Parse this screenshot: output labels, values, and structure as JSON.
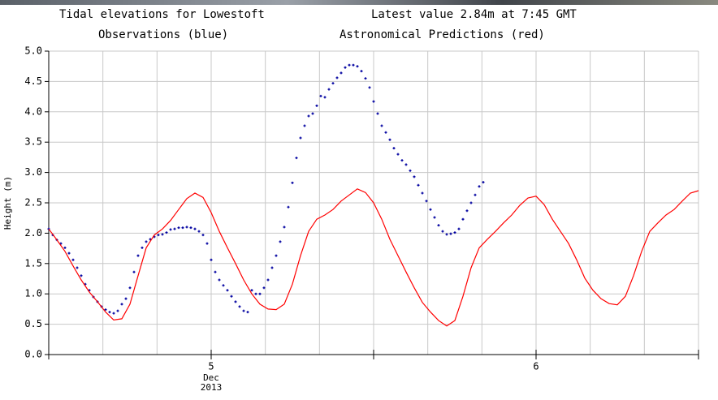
{
  "chart_data": {
    "type": "line",
    "title": "Tidal elevations for Lowestoft",
    "subtitle": "Latest value 2.84m at 7:45 GMT",
    "y_label": "Height (m)",
    "x_sublabels": [
      "Dec",
      "2013"
    ],
    "xlim": [
      4.5,
      6.5
    ],
    "xticks": [
      5,
      6
    ],
    "xtick_marks": [
      4.5,
      5,
      5.5,
      6,
      6.5
    ],
    "xgrid": [
      4.6667,
      4.8333,
      5,
      5.1667,
      5.3333,
      5.5,
      5.6667,
      5.8333,
      6,
      6.1667,
      6.3333,
      6.5
    ],
    "ylim": [
      0,
      5
    ],
    "yticks": [
      {
        "value": 0,
        "label": "0.0"
      },
      0.5,
      {
        "value": 1,
        "label": "1.0"
      },
      1.5,
      {
        "value": 2,
        "label": "2.0"
      },
      2.5,
      {
        "value": 3,
        "label": "3.0"
      },
      3.5,
      {
        "value": 4,
        "label": "4.0"
      },
      4.5,
      {
        "value": 5,
        "label": "5.0"
      }
    ],
    "grid": true,
    "series": [
      {
        "name": "Observations (blue)",
        "color": "#0000a0",
        "marker": "plus",
        "x": [
          4.5,
          4.5125,
          4.525,
          4.5375,
          4.55,
          4.5625,
          4.575,
          4.5875,
          4.6,
          4.6125,
          4.625,
          4.6375,
          4.65,
          4.6625,
          4.675,
          4.6875,
          4.7,
          4.7125,
          4.725,
          4.7375,
          4.75,
          4.7625,
          4.775,
          4.7875,
          4.8,
          4.8125,
          4.825,
          4.8375,
          4.85,
          4.8625,
          4.875,
          4.8875,
          4.9,
          4.9125,
          4.925,
          4.9375,
          4.95,
          4.9625,
          4.975,
          4.9875,
          5,
          5.0125,
          5.025,
          5.0375,
          5.05,
          5.0625,
          5.075,
          5.0875,
          5.1,
          5.1125,
          5.125,
          5.1375,
          5.15,
          5.1625,
          5.175,
          5.1875,
          5.2,
          5.2125,
          5.225,
          5.2375,
          5.25,
          5.2625,
          5.275,
          5.2875,
          5.3,
          5.3125,
          5.325,
          5.3375,
          5.35,
          5.3625,
          5.375,
          5.3875,
          5.4,
          5.4125,
          5.425,
          5.4375,
          5.45,
          5.4625,
          5.475,
          5.4875,
          5.5,
          5.5125,
          5.525,
          5.5375,
          5.55,
          5.5625,
          5.575,
          5.5875,
          5.6,
          5.6125,
          5.625,
          5.6375,
          5.65,
          5.6625,
          5.675,
          5.6875,
          5.7,
          5.7125,
          5.725,
          5.7375,
          5.75,
          5.7625,
          5.775,
          5.7875,
          5.8,
          5.8125,
          5.825,
          5.8375
        ],
        "values": [
          2.07,
          1.97,
          1.89,
          1.83,
          1.76,
          1.67,
          1.56,
          1.43,
          1.3,
          1.16,
          1.06,
          0.95,
          0.87,
          0.79,
          0.74,
          0.7,
          0.68,
          0.72,
          0.83,
          0.92,
          1.1,
          1.36,
          1.63,
          1.76,
          1.86,
          1.9,
          1.94,
          1.97,
          1.98,
          2.01,
          2.06,
          2.07,
          2.09,
          2.09,
          2.1,
          2.09,
          2.07,
          2.03,
          1.97,
          1.83,
          1.56,
          1.36,
          1.23,
          1.14,
          1.06,
          0.96,
          0.87,
          0.79,
          0.72,
          0.7,
          1.06,
          1.0,
          1.0,
          1.1,
          1.23,
          1.43,
          1.63,
          1.86,
          2.1,
          2.43,
          2.83,
          3.24,
          3.57,
          3.77,
          3.93,
          3.97,
          4.1,
          4.26,
          4.24,
          4.37,
          4.47,
          4.56,
          4.64,
          4.73,
          4.77,
          4.77,
          4.75,
          4.67,
          4.55,
          4.4,
          4.17,
          3.97,
          3.77,
          3.66,
          3.54,
          3.4,
          3.3,
          3.2,
          3.13,
          3.03,
          2.93,
          2.79,
          2.66,
          2.53,
          2.39,
          2.26,
          2.13,
          2.03,
          1.98,
          1.99,
          2.01,
          2.07,
          2.23,
          2.37,
          2.5,
          2.63,
          2.77,
          2.84
        ]
      },
      {
        "name": "Astronomical Predictions (red)",
        "color": "#ff0000",
        "marker": "line",
        "x": [
          4.5,
          4.525,
          4.55,
          4.575,
          4.6,
          4.625,
          4.65,
          4.675,
          4.7,
          4.725,
          4.75,
          4.775,
          4.8,
          4.825,
          4.85,
          4.875,
          4.9,
          4.925,
          4.95,
          4.975,
          5,
          5.025,
          5.05,
          5.075,
          5.1,
          5.125,
          5.15,
          5.175,
          5.2,
          5.225,
          5.25,
          5.275,
          5.3,
          5.325,
          5.35,
          5.375,
          5.4,
          5.425,
          5.45,
          5.475,
          5.5,
          5.525,
          5.55,
          5.575,
          5.6,
          5.625,
          5.65,
          5.675,
          5.7,
          5.725,
          5.75,
          5.775,
          5.8,
          5.825,
          5.85,
          5.875,
          5.9,
          5.925,
          5.95,
          5.975,
          6,
          6.025,
          6.05,
          6.075,
          6.1,
          6.125,
          6.15,
          6.175,
          6.2,
          6.225,
          6.25,
          6.275,
          6.3,
          6.325,
          6.35,
          6.375,
          6.4,
          6.425,
          6.45,
          6.475,
          6.5
        ],
        "values": [
          2.07,
          1.89,
          1.7,
          1.46,
          1.23,
          1.03,
          0.87,
          0.7,
          0.57,
          0.59,
          0.83,
          1.3,
          1.76,
          1.97,
          2.07,
          2.21,
          2.39,
          2.57,
          2.66,
          2.59,
          2.34,
          2.03,
          1.76,
          1.5,
          1.23,
          1.0,
          0.83,
          0.75,
          0.74,
          0.83,
          1.16,
          1.63,
          2.03,
          2.23,
          2.3,
          2.39,
          2.53,
          2.63,
          2.73,
          2.67,
          2.5,
          2.23,
          1.9,
          1.63,
          1.36,
          1.1,
          0.86,
          0.7,
          0.56,
          0.47,
          0.56,
          0.96,
          1.43,
          1.76,
          1.9,
          2.03,
          2.17,
          2.3,
          2.46,
          2.58,
          2.61,
          2.47,
          2.23,
          2.03,
          1.83,
          1.56,
          1.26,
          1.06,
          0.92,
          0.84,
          0.82,
          0.96,
          1.3,
          1.7,
          2.03,
          2.17,
          2.3,
          2.39,
          2.53,
          2.66,
          2.7
        ]
      }
    ]
  }
}
